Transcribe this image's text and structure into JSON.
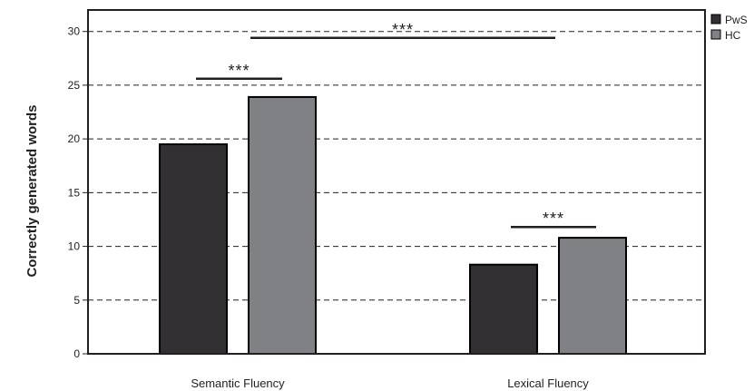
{
  "chart_data": {
    "type": "bar",
    "categories": [
      "Semantic Fluency",
      "Lexical Fluency"
    ],
    "series": [
      {
        "name": "PwS",
        "values": [
          19.5,
          8.3
        ],
        "color": "#333033"
      },
      {
        "name": "HC",
        "values": [
          23.9,
          10.8
        ],
        "color": "#808184"
      }
    ],
    "title": "",
    "xlabel": "",
    "ylabel": "Correctly generated words",
    "ylim": [
      0,
      32
    ],
    "yticks": [
      0,
      5,
      10,
      15,
      20,
      25,
      30
    ],
    "grid": "horizontal-dashed",
    "legend_position": "top-right",
    "annotations": [
      {
        "label": "***",
        "type": "within-category",
        "category": "Semantic Fluency",
        "y": 25.6
      },
      {
        "label": "***",
        "type": "between-categories",
        "from": "Semantic Fluency",
        "to": "Lexical Fluency",
        "y": 29.4
      },
      {
        "label": "***",
        "type": "within-category",
        "category": "Lexical Fluency",
        "y": 11.8
      }
    ]
  }
}
